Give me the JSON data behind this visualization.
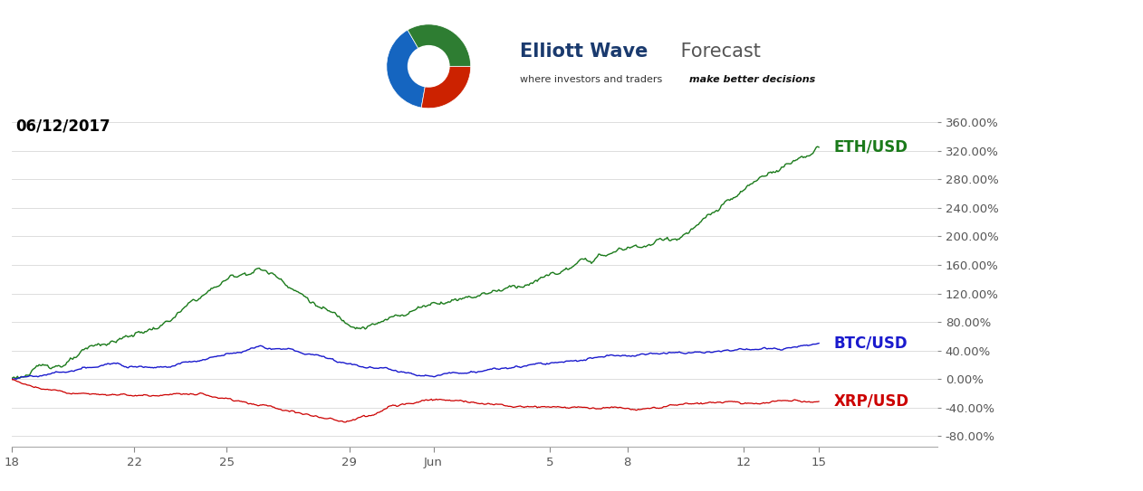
{
  "title_date": "06/12/2017",
  "watermark_line1_bold": "Elliott Wave",
  "watermark_line1_normal": " Forecast",
  "watermark_line2": "where investors and traders ",
  "watermark_line2_bold": "make better decisions",
  "background_color": "#ffffff",
  "plot_bg_color": "#ffffff",
  "grid_color": "#d8d8d8",
  "eth_color": "#1a7a1a",
  "btc_color": "#1a1acd",
  "xrp_color": "#cc0000",
  "eth_label": "ETH/USD",
  "btc_label": "BTC/USD",
  "xrp_label": "XRP/USD",
  "x_ticks_labels": [
    "18",
    "22",
    "25",
    "29",
    "Jun",
    "5",
    "8",
    "12",
    "15"
  ],
  "x_ticks_pos": [
    0,
    57,
    100,
    157,
    196,
    250,
    286,
    340,
    375
  ],
  "y_ticks": [
    -80,
    -40,
    0,
    40,
    80,
    120,
    160,
    200,
    240,
    280,
    320,
    360
  ],
  "ylim": [
    -95,
    380
  ],
  "xlim_min": 0,
  "xlim_max": 430,
  "n_points": 672,
  "date_fontsize": 12,
  "label_fontsize": 12,
  "tick_fontsize": 9.5
}
